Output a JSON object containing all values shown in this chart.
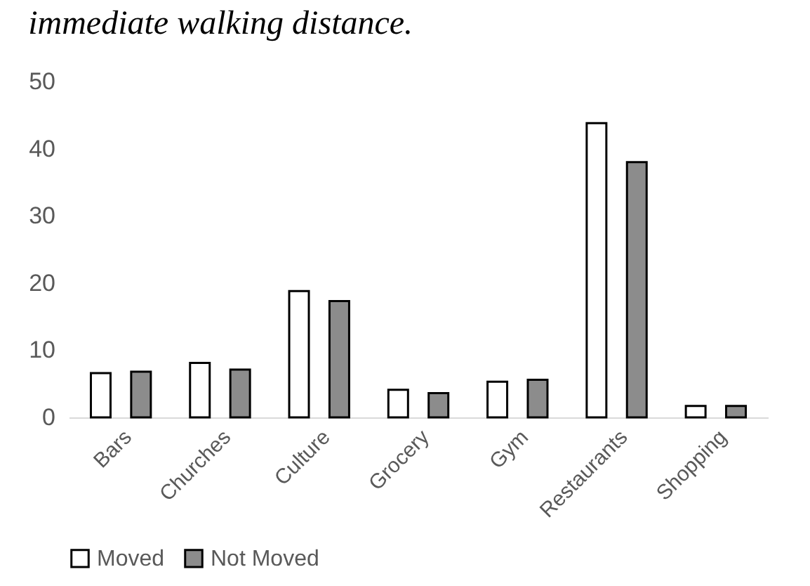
{
  "chart_data": {
    "type": "bar",
    "title": "immediate walking distance.",
    "categories": [
      "Bars",
      "Churches",
      "Culture",
      "Grocery",
      "Gym",
      "Restaurants",
      "Shopping"
    ],
    "series": [
      {
        "name": "Moved",
        "color": "#ffffff",
        "values": [
          6.6,
          8.1,
          18.8,
          4.1,
          5.3,
          43.8,
          1.7
        ]
      },
      {
        "name": "Not Moved",
        "color": "#8c8c8c",
        "values": [
          6.8,
          7.1,
          17.3,
          3.6,
          5.6,
          38.0,
          1.7
        ]
      }
    ],
    "ylim": [
      0,
      50
    ],
    "yticks": [
      0,
      10,
      20,
      30,
      40,
      50
    ],
    "grid": false,
    "legend": "bottom"
  }
}
